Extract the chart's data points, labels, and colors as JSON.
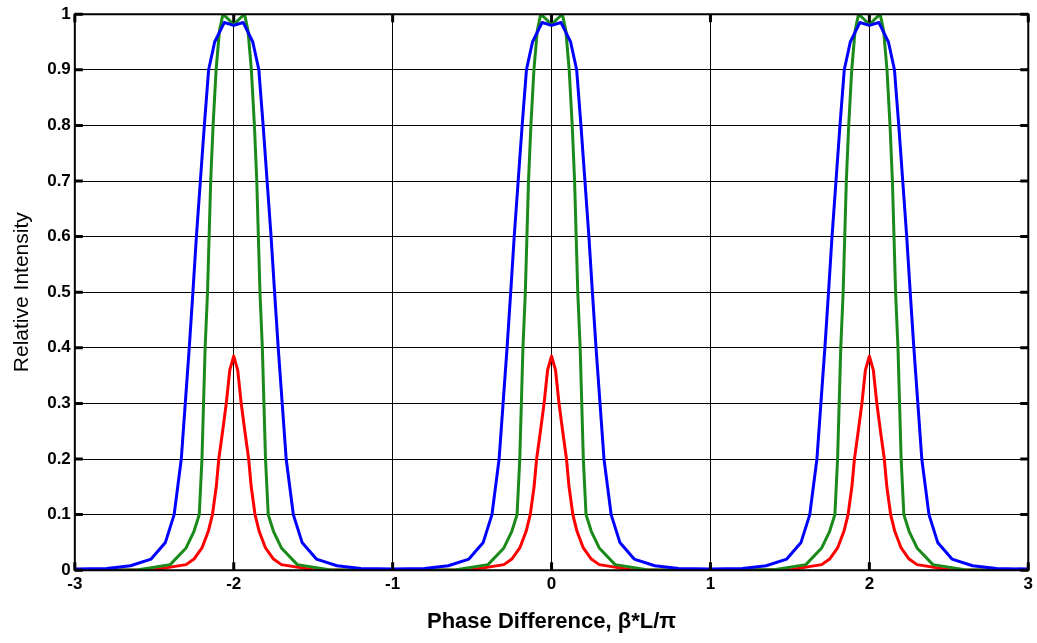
{
  "chart_data": {
    "type": "line",
    "xlabel": "Phase Difference, β*L/π",
    "ylabel": "Relative Intensity",
    "xlim": [
      -3,
      3
    ],
    "xticks": [
      -3,
      -2,
      -1,
      0,
      1,
      2,
      3
    ],
    "ylim": [
      0,
      1
    ],
    "yticks": [
      0,
      0.1,
      0.2,
      0.3,
      0.4,
      0.5,
      0.6,
      0.7,
      0.8,
      0.9,
      1
    ],
    "grid": true,
    "legend": false,
    "marker": "none",
    "line_style": "solid",
    "series": [
      {
        "color": "#0000ff",
        "x": [
          -3,
          -2.8,
          -2.65,
          -2.52,
          -2.43,
          -2.375,
          -2.33,
          -2.305,
          -2.28,
          -2.257,
          -2.235,
          -2.21,
          -2.185,
          -2.158,
          -2.12,
          -2.06,
          -2,
          -1.94,
          -1.88,
          -1.842,
          -1.815,
          -1.79,
          -1.765,
          -1.743,
          -1.72,
          -1.695,
          -1.67,
          -1.625,
          -1.57,
          -1.48,
          -1.35,
          -1.2,
          -1,
          -0.8,
          -0.65,
          -0.52,
          -0.43,
          -0.375,
          -0.33,
          -0.305,
          -0.28,
          -0.257,
          -0.235,
          -0.21,
          -0.185,
          -0.158,
          -0.12,
          -0.06,
          0,
          0.06,
          0.12,
          0.158,
          0.185,
          0.21,
          0.235,
          0.257,
          0.28,
          0.305,
          0.33,
          0.375,
          0.43,
          0.52,
          0.65,
          0.8,
          1,
          1.2,
          1.35,
          1.48,
          1.57,
          1.625,
          1.67,
          1.695,
          1.72,
          1.743,
          1.765,
          1.79,
          1.815,
          1.842,
          1.88,
          1.94,
          2,
          2.06,
          2.12,
          2.158,
          2.185,
          2.21,
          2.235,
          2.257,
          2.28,
          2.305,
          2.33,
          2.375,
          2.43,
          2.52,
          2.65,
          2.8,
          3
        ],
        "values": [
          0.002,
          0.003,
          0.008,
          0.02,
          0.05,
          0.1,
          0.2,
          0.3,
          0.4,
          0.5,
          0.6,
          0.7,
          0.8,
          0.9,
          0.95,
          0.985,
          0.98,
          0.985,
          0.95,
          0.9,
          0.8,
          0.7,
          0.6,
          0.5,
          0.4,
          0.3,
          0.2,
          0.1,
          0.05,
          0.02,
          0.008,
          0.003,
          0.002,
          0.003,
          0.008,
          0.02,
          0.05,
          0.1,
          0.2,
          0.3,
          0.4,
          0.5,
          0.6,
          0.7,
          0.8,
          0.9,
          0.95,
          0.985,
          0.98,
          0.985,
          0.95,
          0.9,
          0.8,
          0.7,
          0.6,
          0.5,
          0.4,
          0.3,
          0.2,
          0.1,
          0.05,
          0.02,
          0.008,
          0.003,
          0.002,
          0.003,
          0.008,
          0.02,
          0.05,
          0.1,
          0.2,
          0.3,
          0.4,
          0.5,
          0.6,
          0.7,
          0.8,
          0.9,
          0.95,
          0.985,
          0.98,
          0.985,
          0.95,
          0.9,
          0.8,
          0.7,
          0.6,
          0.5,
          0.4,
          0.3,
          0.2,
          0.1,
          0.05,
          0.02,
          0.008,
          0.003,
          0.002
        ]
      },
      {
        "color": "#1a8a1a",
        "x": [
          -3,
          -2.6,
          -2.4,
          -2.3,
          -2.25,
          -2.217,
          -2.2,
          -2.19,
          -2.18,
          -2.165,
          -2.155,
          -2.145,
          -2.13,
          -2.111,
          -2.09,
          -2.068,
          -2.03,
          -2,
          -1.97,
          -1.932,
          -1.91,
          -1.889,
          -1.87,
          -1.855,
          -1.845,
          -1.835,
          -1.82,
          -1.81,
          -1.8,
          -1.783,
          -1.75,
          -1.7,
          -1.6,
          -1.4,
          -1,
          -0.6,
          -0.4,
          -0.3,
          -0.25,
          -0.217,
          -0.2,
          -0.19,
          -0.18,
          -0.165,
          -0.155,
          -0.145,
          -0.13,
          -0.111,
          -0.09,
          -0.068,
          -0.03,
          0,
          0.03,
          0.068,
          0.09,
          0.111,
          0.13,
          0.145,
          0.155,
          0.165,
          0.18,
          0.19,
          0.2,
          0.217,
          0.25,
          0.3,
          0.4,
          0.6,
          1,
          1.4,
          1.6,
          1.7,
          1.75,
          1.783,
          1.8,
          1.81,
          1.82,
          1.835,
          1.845,
          1.855,
          1.87,
          1.889,
          1.91,
          1.932,
          1.97,
          2,
          2.03,
          2.068,
          2.09,
          2.111,
          2.13,
          2.145,
          2.155,
          2.165,
          2.18,
          2.19,
          2.2,
          2.217,
          2.25,
          2.3,
          2.4,
          2.6,
          3
        ],
        "values": [
          0,
          0.001,
          0.01,
          0.04,
          0.07,
          0.1,
          0.2,
          0.3,
          0.4,
          0.5,
          0.6,
          0.7,
          0.8,
          0.9,
          0.97,
          1,
          0.99,
          0.98,
          0.99,
          1,
          0.97,
          0.9,
          0.8,
          0.7,
          0.6,
          0.5,
          0.4,
          0.3,
          0.2,
          0.1,
          0.07,
          0.04,
          0.01,
          0.001,
          0,
          0.001,
          0.01,
          0.04,
          0.07,
          0.1,
          0.2,
          0.3,
          0.4,
          0.5,
          0.6,
          0.7,
          0.8,
          0.9,
          0.97,
          1,
          0.99,
          0.98,
          0.99,
          1,
          0.97,
          0.9,
          0.8,
          0.7,
          0.6,
          0.5,
          0.4,
          0.3,
          0.2,
          0.1,
          0.07,
          0.04,
          0.01,
          0.001,
          0,
          0.001,
          0.01,
          0.04,
          0.07,
          0.1,
          0.2,
          0.3,
          0.4,
          0.5,
          0.6,
          0.7,
          0.8,
          0.9,
          0.97,
          1,
          0.99,
          0.98,
          0.99,
          1,
          0.97,
          0.9,
          0.8,
          0.7,
          0.6,
          0.5,
          0.4,
          0.3,
          0.2,
          0.1,
          0.07,
          0.04,
          0.01,
          0.001,
          0
        ]
      },
      {
        "color": "#ff0000",
        "x": [
          -3,
          -2.5,
          -2.3,
          -2.25,
          -2.2,
          -2.16,
          -2.134,
          -2.11,
          -2.094,
          -2.07,
          -2.047,
          -2.025,
          -2,
          -1.975,
          -1.953,
          -1.93,
          -1.906,
          -1.89,
          -1.866,
          -1.84,
          -1.8,
          -1.75,
          -1.7,
          -1.5,
          -1,
          -0.5,
          -0.3,
          -0.25,
          -0.2,
          -0.16,
          -0.134,
          -0.11,
          -0.094,
          -0.07,
          -0.047,
          -0.025,
          0,
          0.025,
          0.047,
          0.07,
          0.094,
          0.11,
          0.134,
          0.16,
          0.2,
          0.25,
          0.3,
          0.5,
          1,
          1.5,
          1.7,
          1.75,
          1.8,
          1.84,
          1.866,
          1.89,
          1.906,
          1.93,
          1.953,
          1.975,
          2,
          2.025,
          2.047,
          2.07,
          2.094,
          2.11,
          2.134,
          2.16,
          2.2,
          2.25,
          2.3,
          2.5,
          3
        ],
        "values": [
          0,
          0.001,
          0.01,
          0.02,
          0.04,
          0.07,
          0.1,
          0.15,
          0.2,
          0.25,
          0.3,
          0.36,
          0.385,
          0.36,
          0.3,
          0.25,
          0.2,
          0.15,
          0.1,
          0.07,
          0.04,
          0.02,
          0.01,
          0.001,
          0,
          0.001,
          0.01,
          0.02,
          0.04,
          0.07,
          0.1,
          0.15,
          0.2,
          0.25,
          0.3,
          0.36,
          0.385,
          0.36,
          0.3,
          0.25,
          0.2,
          0.15,
          0.1,
          0.07,
          0.04,
          0.02,
          0.01,
          0.001,
          0,
          0.001,
          0.01,
          0.02,
          0.04,
          0.07,
          0.1,
          0.15,
          0.2,
          0.25,
          0.3,
          0.36,
          0.385,
          0.36,
          0.3,
          0.25,
          0.2,
          0.15,
          0.1,
          0.07,
          0.04,
          0.02,
          0.01,
          0.001,
          0
        ]
      }
    ]
  }
}
